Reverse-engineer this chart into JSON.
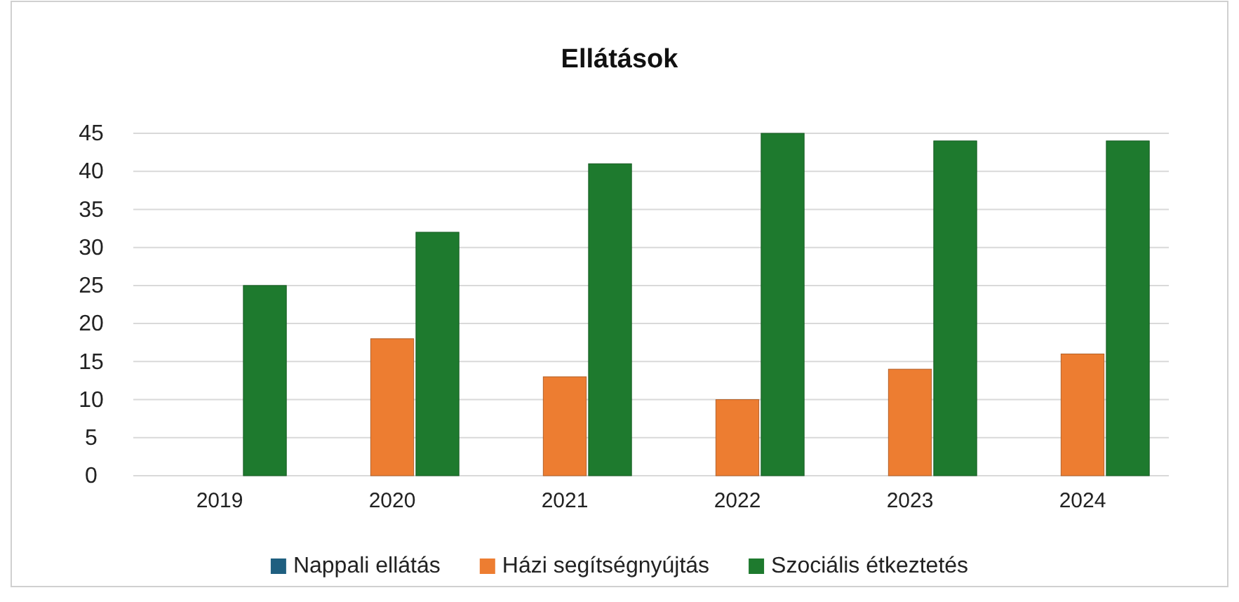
{
  "chart_data": {
    "type": "bar",
    "title": "Ellátások",
    "categories": [
      "2019",
      "2020",
      "2021",
      "2022",
      "2023",
      "2024"
    ],
    "series": [
      {
        "name": "Nappali ellátás",
        "color": "#1f5f80",
        "values": [
          0,
          0,
          0,
          0,
          0,
          0
        ]
      },
      {
        "name": "Házi segítségnyújtás",
        "color": "#ed7d31",
        "values": [
          0,
          18,
          13,
          10,
          14,
          16
        ]
      },
      {
        "name": "Szociális étkeztetés",
        "color": "#1e7a2e",
        "values": [
          25,
          32,
          41,
          45,
          44,
          44
        ]
      }
    ],
    "ylim": [
      0,
      45
    ],
    "yticks": [
      0,
      5,
      10,
      15,
      20,
      25,
      30,
      35,
      40,
      45
    ],
    "grid": "y",
    "legend": "bottom"
  }
}
